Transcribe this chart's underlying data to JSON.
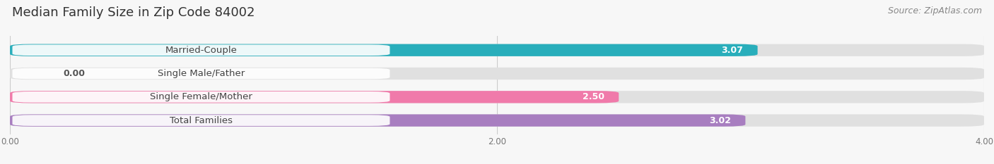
{
  "title": "Median Family Size in Zip Code 84002",
  "source": "Source: ZipAtlas.com",
  "categories": [
    "Married-Couple",
    "Single Male/Father",
    "Single Female/Mother",
    "Total Families"
  ],
  "values": [
    3.07,
    0.0,
    2.5,
    3.02
  ],
  "bar_colors": [
    "#29aebb",
    "#a8b8e8",
    "#f07aaa",
    "#a87ec0"
  ],
  "value_colors": [
    "white",
    "#555555",
    "white",
    "white"
  ],
  "bar_bg_color": "#e0e0e0",
  "xlim": [
    0,
    4.0
  ],
  "xticks": [
    0.0,
    2.0,
    4.0
  ],
  "xtick_labels": [
    "0.00",
    "2.00",
    "4.00"
  ],
  "title_fontsize": 13,
  "source_fontsize": 9,
  "label_fontsize": 9.5,
  "value_fontsize": 9,
  "background_color": "#f7f7f7",
  "bar_height": 0.52,
  "figsize": [
    14.06,
    2.33
  ],
  "dpi": 100
}
